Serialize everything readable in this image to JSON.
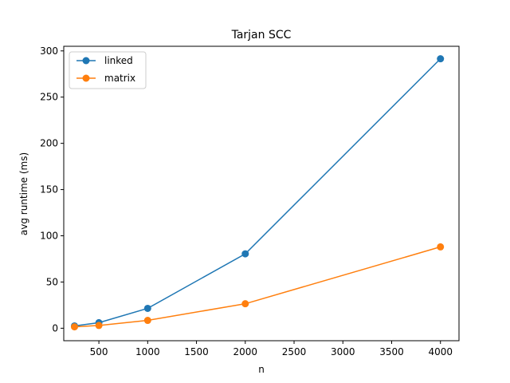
{
  "chart_data": {
    "type": "line",
    "title": "Tarjan SCC",
    "xlabel": "n",
    "ylabel": "avg runtime (ms)",
    "xlim": [
      140,
      4190
    ],
    "ylim": [
      -13.5,
      305
    ],
    "xticks": [
      500,
      1000,
      1500,
      2000,
      2500,
      3000,
      3500,
      4000
    ],
    "yticks": [
      0,
      50,
      100,
      150,
      200,
      250,
      300
    ],
    "grid": false,
    "legend_position": "top-left",
    "series": [
      {
        "name": "linked",
        "color": "#1f77b4",
        "marker": "circle",
        "x": [
          250,
          500,
          1000,
          2000,
          4000
        ],
        "y": [
          2.5,
          6.0,
          21.5,
          80.5,
          291.5
        ]
      },
      {
        "name": "matrix",
        "color": "#ff7f0e",
        "marker": "circle",
        "x": [
          250,
          500,
          1000,
          2000,
          4000
        ],
        "y": [
          1.5,
          3.0,
          8.5,
          26.5,
          88.0
        ]
      }
    ]
  }
}
